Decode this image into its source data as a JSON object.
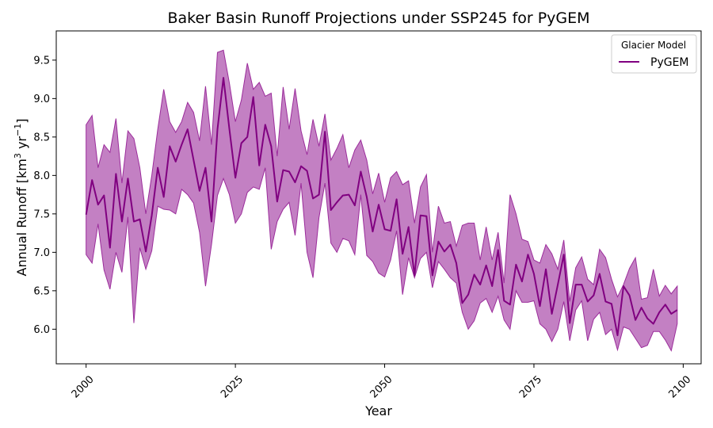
{
  "chart_data": {
    "type": "line",
    "title": "Baker Basin Runoff Projections under SSP245 for PyGEM",
    "xlabel": "Year",
    "ylabel_main": "Annual Runoff [km",
    "ylabel_sup1": "3",
    "ylabel_mid": " yr",
    "ylabel_sup2": "−1",
    "ylabel_end": "]",
    "xlim": [
      1995,
      2103
    ],
    "ylim": [
      5.55,
      9.88
    ],
    "xticks": [
      2000,
      2025,
      2050,
      2075,
      2100
    ],
    "yticks": [
      6.0,
      6.5,
      7.0,
      7.5,
      8.0,
      8.5,
      9.0,
      9.5
    ],
    "grid": false,
    "legend": {
      "title": "Glacier Model",
      "placement": "top-right",
      "entries": [
        "PyGEM"
      ]
    },
    "series": [
      {
        "name": "PyGEM",
        "color": "#800080",
        "band_color": "#9b2c9b",
        "x_start": 2000,
        "x_end": 2099,
        "mean": [
          7.49,
          7.94,
          7.62,
          7.74,
          7.06,
          8.02,
          7.4,
          7.96,
          7.4,
          7.43,
          7.01,
          7.48,
          8.1,
          7.72,
          8.38,
          8.18,
          8.4,
          8.6,
          8.2,
          7.8,
          8.1,
          7.4,
          8.6,
          9.27,
          8.6,
          7.97,
          8.42,
          8.5,
          9.02,
          8.13,
          8.66,
          8.38,
          7.66,
          8.07,
          8.05,
          7.91,
          8.12,
          8.06,
          7.7,
          7.75,
          8.57,
          7.55,
          7.65,
          7.74,
          7.75,
          7.61,
          8.05,
          7.72,
          7.27,
          7.62,
          7.3,
          7.28,
          7.69,
          6.98,
          7.33,
          6.7,
          7.48,
          7.47,
          6.7,
          7.14,
          7.01,
          7.1,
          6.86,
          6.34,
          6.45,
          6.71,
          6.58,
          6.83,
          6.56,
          7.03,
          6.37,
          6.32,
          6.84,
          6.62,
          6.97,
          6.72,
          6.3,
          6.78,
          6.2,
          6.58,
          6.97,
          6.08,
          6.58,
          6.58,
          6.36,
          6.44,
          6.72,
          6.36,
          6.33,
          5.92,
          6.56,
          6.44,
          6.12,
          6.28,
          6.14,
          6.07,
          6.22,
          6.32,
          6.2,
          6.25
        ],
        "upper": [
          8.66,
          8.78,
          8.1,
          8.4,
          8.3,
          8.74,
          7.9,
          8.58,
          8.48,
          8.1,
          7.5,
          8.0,
          8.6,
          9.12,
          8.7,
          8.56,
          8.7,
          8.95,
          8.82,
          8.45,
          9.16,
          8.4,
          9.6,
          9.63,
          9.2,
          8.7,
          8.98,
          9.46,
          9.12,
          9.21,
          9.03,
          9.07,
          8.25,
          9.15,
          8.6,
          9.13,
          8.58,
          8.27,
          8.73,
          8.38,
          8.8,
          8.2,
          8.35,
          8.53,
          8.1,
          8.33,
          8.46,
          8.2,
          7.76,
          8.03,
          7.65,
          7.97,
          8.05,
          7.88,
          7.93,
          7.38,
          7.85,
          8.01,
          7.0,
          7.6,
          7.38,
          7.4,
          7.08,
          7.35,
          7.38,
          7.38,
          6.9,
          7.33,
          6.9,
          7.26,
          6.6,
          7.75,
          7.5,
          7.17,
          7.14,
          6.9,
          6.86,
          7.1,
          6.98,
          6.78,
          7.16,
          6.36,
          6.8,
          6.94,
          6.65,
          6.58,
          7.04,
          6.93,
          6.65,
          6.42,
          6.58,
          6.79,
          6.93,
          6.39,
          6.41,
          6.78,
          6.43,
          6.57,
          6.46,
          6.56
        ],
        "lower": [
          6.97,
          6.86,
          7.37,
          6.77,
          6.52,
          7.0,
          6.74,
          7.46,
          6.08,
          7.06,
          6.78,
          7.02,
          7.6,
          7.56,
          7.55,
          7.5,
          7.82,
          7.75,
          7.64,
          7.26,
          6.56,
          7.1,
          7.74,
          7.96,
          7.75,
          7.38,
          7.5,
          7.78,
          7.85,
          7.82,
          8.1,
          7.04,
          7.4,
          7.56,
          7.65,
          7.22,
          7.9,
          7.0,
          6.67,
          7.45,
          7.9,
          7.12,
          7.0,
          7.18,
          7.15,
          6.97,
          7.75,
          6.96,
          6.88,
          6.73,
          6.68,
          6.9,
          7.28,
          6.45,
          6.93,
          6.67,
          6.92,
          7.0,
          6.54,
          6.88,
          6.78,
          6.67,
          6.6,
          6.22,
          6.0,
          6.11,
          6.34,
          6.4,
          6.22,
          6.43,
          6.12,
          6.0,
          6.5,
          6.35,
          6.35,
          6.37,
          6.07,
          6.0,
          5.84,
          6.0,
          6.36,
          5.85,
          6.25,
          6.37,
          5.85,
          6.13,
          6.22,
          5.93,
          6.0,
          5.73,
          6.03,
          6.0,
          5.88,
          5.76,
          5.79,
          5.97,
          5.97,
          5.86,
          5.72,
          6.07
        ]
      }
    ]
  }
}
